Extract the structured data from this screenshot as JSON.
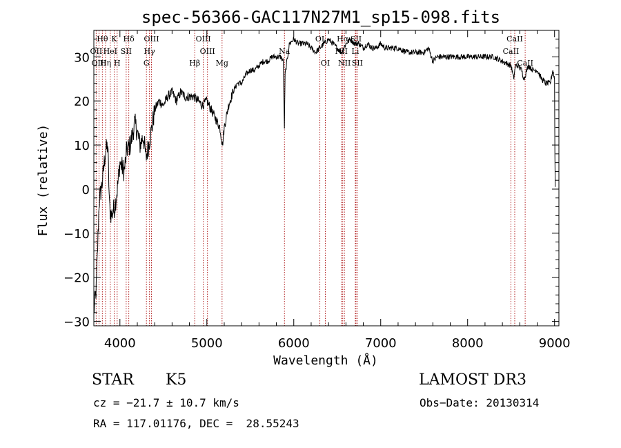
{
  "chart_data": {
    "type": "line",
    "title": "spec-56366-GAC117N27M1_sp15-098.fits",
    "xlabel": "Wavelength (Å)",
    "ylabel": "Flux (relative)",
    "xlim": [
      3700,
      9050
    ],
    "ylim": [
      -31,
      36
    ],
    "xticks": [
      4000,
      5000,
      6000,
      7000,
      8000,
      9000
    ],
    "yticks": [
      -30,
      -20,
      -10,
      0,
      10,
      20,
      30
    ],
    "spectrum_anchors": [
      [
        3700,
        -28
      ],
      [
        3730,
        -22
      ],
      [
        3760,
        -3
      ],
      [
        3800,
        2
      ],
      [
        3830,
        8
      ],
      [
        3860,
        10
      ],
      [
        3880,
        -4
      ],
      [
        3900,
        -6
      ],
      [
        3940,
        -4
      ],
      [
        3970,
        0
      ],
      [
        4000,
        6
      ],
      [
        4050,
        4
      ],
      [
        4080,
        9
      ],
      [
        4120,
        10
      ],
      [
        4170,
        15
      ],
      [
        4200,
        13
      ],
      [
        4230,
        10
      ],
      [
        4270,
        12
      ],
      [
        4300,
        7
      ],
      [
        4330,
        10
      ],
      [
        4360,
        13
      ],
      [
        4400,
        18
      ],
      [
        4450,
        20
      ],
      [
        4500,
        19
      ],
      [
        4550,
        21
      ],
      [
        4600,
        22
      ],
      [
        4650,
        20
      ],
      [
        4700,
        22
      ],
      [
        4750,
        21
      ],
      [
        4800,
        21
      ],
      [
        4850,
        21
      ],
      [
        4900,
        20
      ],
      [
        4950,
        19
      ],
      [
        5000,
        20
      ],
      [
        5050,
        18
      ],
      [
        5100,
        16
      ],
      [
        5150,
        14
      ],
      [
        5180,
        10
      ],
      [
        5200,
        14
      ],
      [
        5250,
        19
      ],
      [
        5300,
        22
      ],
      [
        5350,
        24
      ],
      [
        5400,
        24
      ],
      [
        5450,
        26
      ],
      [
        5500,
        27
      ],
      [
        5550,
        27
      ],
      [
        5600,
        28
      ],
      [
        5650,
        29
      ],
      [
        5700,
        29
      ],
      [
        5750,
        30
      ],
      [
        5800,
        30
      ],
      [
        5850,
        30
      ],
      [
        5880,
        29
      ],
      [
        5892,
        14
      ],
      [
        5900,
        26
      ],
      [
        5950,
        33
      ],
      [
        6000,
        34
      ],
      [
        6050,
        33
      ],
      [
        6100,
        33
      ],
      [
        6150,
        33
      ],
      [
        6200,
        32
      ],
      [
        6250,
        31
      ],
      [
        6300,
        32
      ],
      [
        6350,
        33
      ],
      [
        6400,
        34
      ],
      [
        6450,
        33
      ],
      [
        6500,
        32
      ],
      [
        6550,
        31
      ],
      [
        6600,
        33
      ],
      [
        6650,
        34
      ],
      [
        6700,
        33
      ],
      [
        6750,
        33
      ],
      [
        6800,
        32
      ],
      [
        6850,
        33
      ],
      [
        6900,
        32
      ],
      [
        6950,
        32
      ],
      [
        7000,
        33
      ],
      [
        7050,
        32
      ],
      [
        7100,
        32
      ],
      [
        7200,
        32
      ],
      [
        7300,
        31
      ],
      [
        7400,
        31
      ],
      [
        7500,
        31
      ],
      [
        7550,
        32
      ],
      [
        7600,
        29
      ],
      [
        7650,
        30
      ],
      [
        7700,
        30
      ],
      [
        7800,
        30
      ],
      [
        7900,
        30
      ],
      [
        8000,
        30
      ],
      [
        8100,
        30
      ],
      [
        8200,
        30
      ],
      [
        8300,
        30
      ],
      [
        8400,
        29
      ],
      [
        8500,
        28
      ],
      [
        8530,
        25
      ],
      [
        8550,
        28
      ],
      [
        8580,
        28
      ],
      [
        8620,
        27
      ],
      [
        8650,
        25
      ],
      [
        8680,
        27
      ],
      [
        8700,
        28
      ],
      [
        8750,
        27
      ],
      [
        8800,
        27
      ],
      [
        8850,
        25
      ],
      [
        8900,
        24
      ],
      [
        8950,
        24
      ],
      [
        8980,
        27
      ],
      [
        9000,
        25
      ],
      [
        9005,
        3
      ],
      [
        9010,
        -1
      ]
    ],
    "lines": [
      {
        "label": "Hθ",
        "wave": 3798,
        "row": 1
      },
      {
        "label": "OII",
        "wave": 3727,
        "row": 2
      },
      {
        "label": "OIII",
        "wave": 3760,
        "row": 3
      },
      {
        "label": "K",
        "wave": 3934,
        "row": 1
      },
      {
        "label": "HeI",
        "wave": 3889,
        "row": 2
      },
      {
        "label": "Hη",
        "wave": 3835,
        "row": 3
      },
      {
        "label": "H",
        "wave": 3968,
        "row": 3
      },
      {
        "label": "SII",
        "wave": 4072,
        "row": 2
      },
      {
        "label": "Hδ",
        "wave": 4102,
        "row": 1
      },
      {
        "label": "OIII",
        "wave": 4363,
        "row": 1
      },
      {
        "label": "Hγ",
        "wave": 4340,
        "row": 2
      },
      {
        "label": "G",
        "wave": 4305,
        "row": 3
      },
      {
        "label": "Hβ",
        "wave": 4861,
        "row": 3
      },
      {
        "label": "OIII",
        "wave": 4959,
        "row": 1
      },
      {
        "label": "OIII",
        "wave": 5007,
        "row": 2
      },
      {
        "label": "Mg",
        "wave": 5175,
        "row": 3
      },
      {
        "label": "Na",
        "wave": 5893,
        "row": 2
      },
      {
        "label": "OI",
        "wave": 6300,
        "row": 1
      },
      {
        "label": "OI",
        "wave": 6363,
        "row": 3
      },
      {
        "label": "NII",
        "wave": 6548,
        "row": 2
      },
      {
        "label": "Hα",
        "wave": 6563,
        "row": 1
      },
      {
        "label": "NII",
        "wave": 6583,
        "row": 3
      },
      {
        "label": "SII",
        "wave": 6716,
        "row": 1
      },
      {
        "label": "Li",
        "wave": 6708,
        "row": 2
      },
      {
        "label": "SII",
        "wave": 6731,
        "row": 3
      },
      {
        "label": "CaII",
        "wave": 8498,
        "row": 2
      },
      {
        "label": "CaII",
        "wave": 8542,
        "row": 1
      },
      {
        "label": "CaII",
        "wave": 8662,
        "row": 3
      }
    ]
  },
  "info": {
    "class": "STAR",
    "subclass": "K5",
    "survey": "LAMOST DR3",
    "cz": "cz = −21.7 ± 10.7 km/s",
    "obs_date": "Obs−Date: 20130314",
    "radec": "RA = 117.01176, DEC =  28.55243"
  }
}
